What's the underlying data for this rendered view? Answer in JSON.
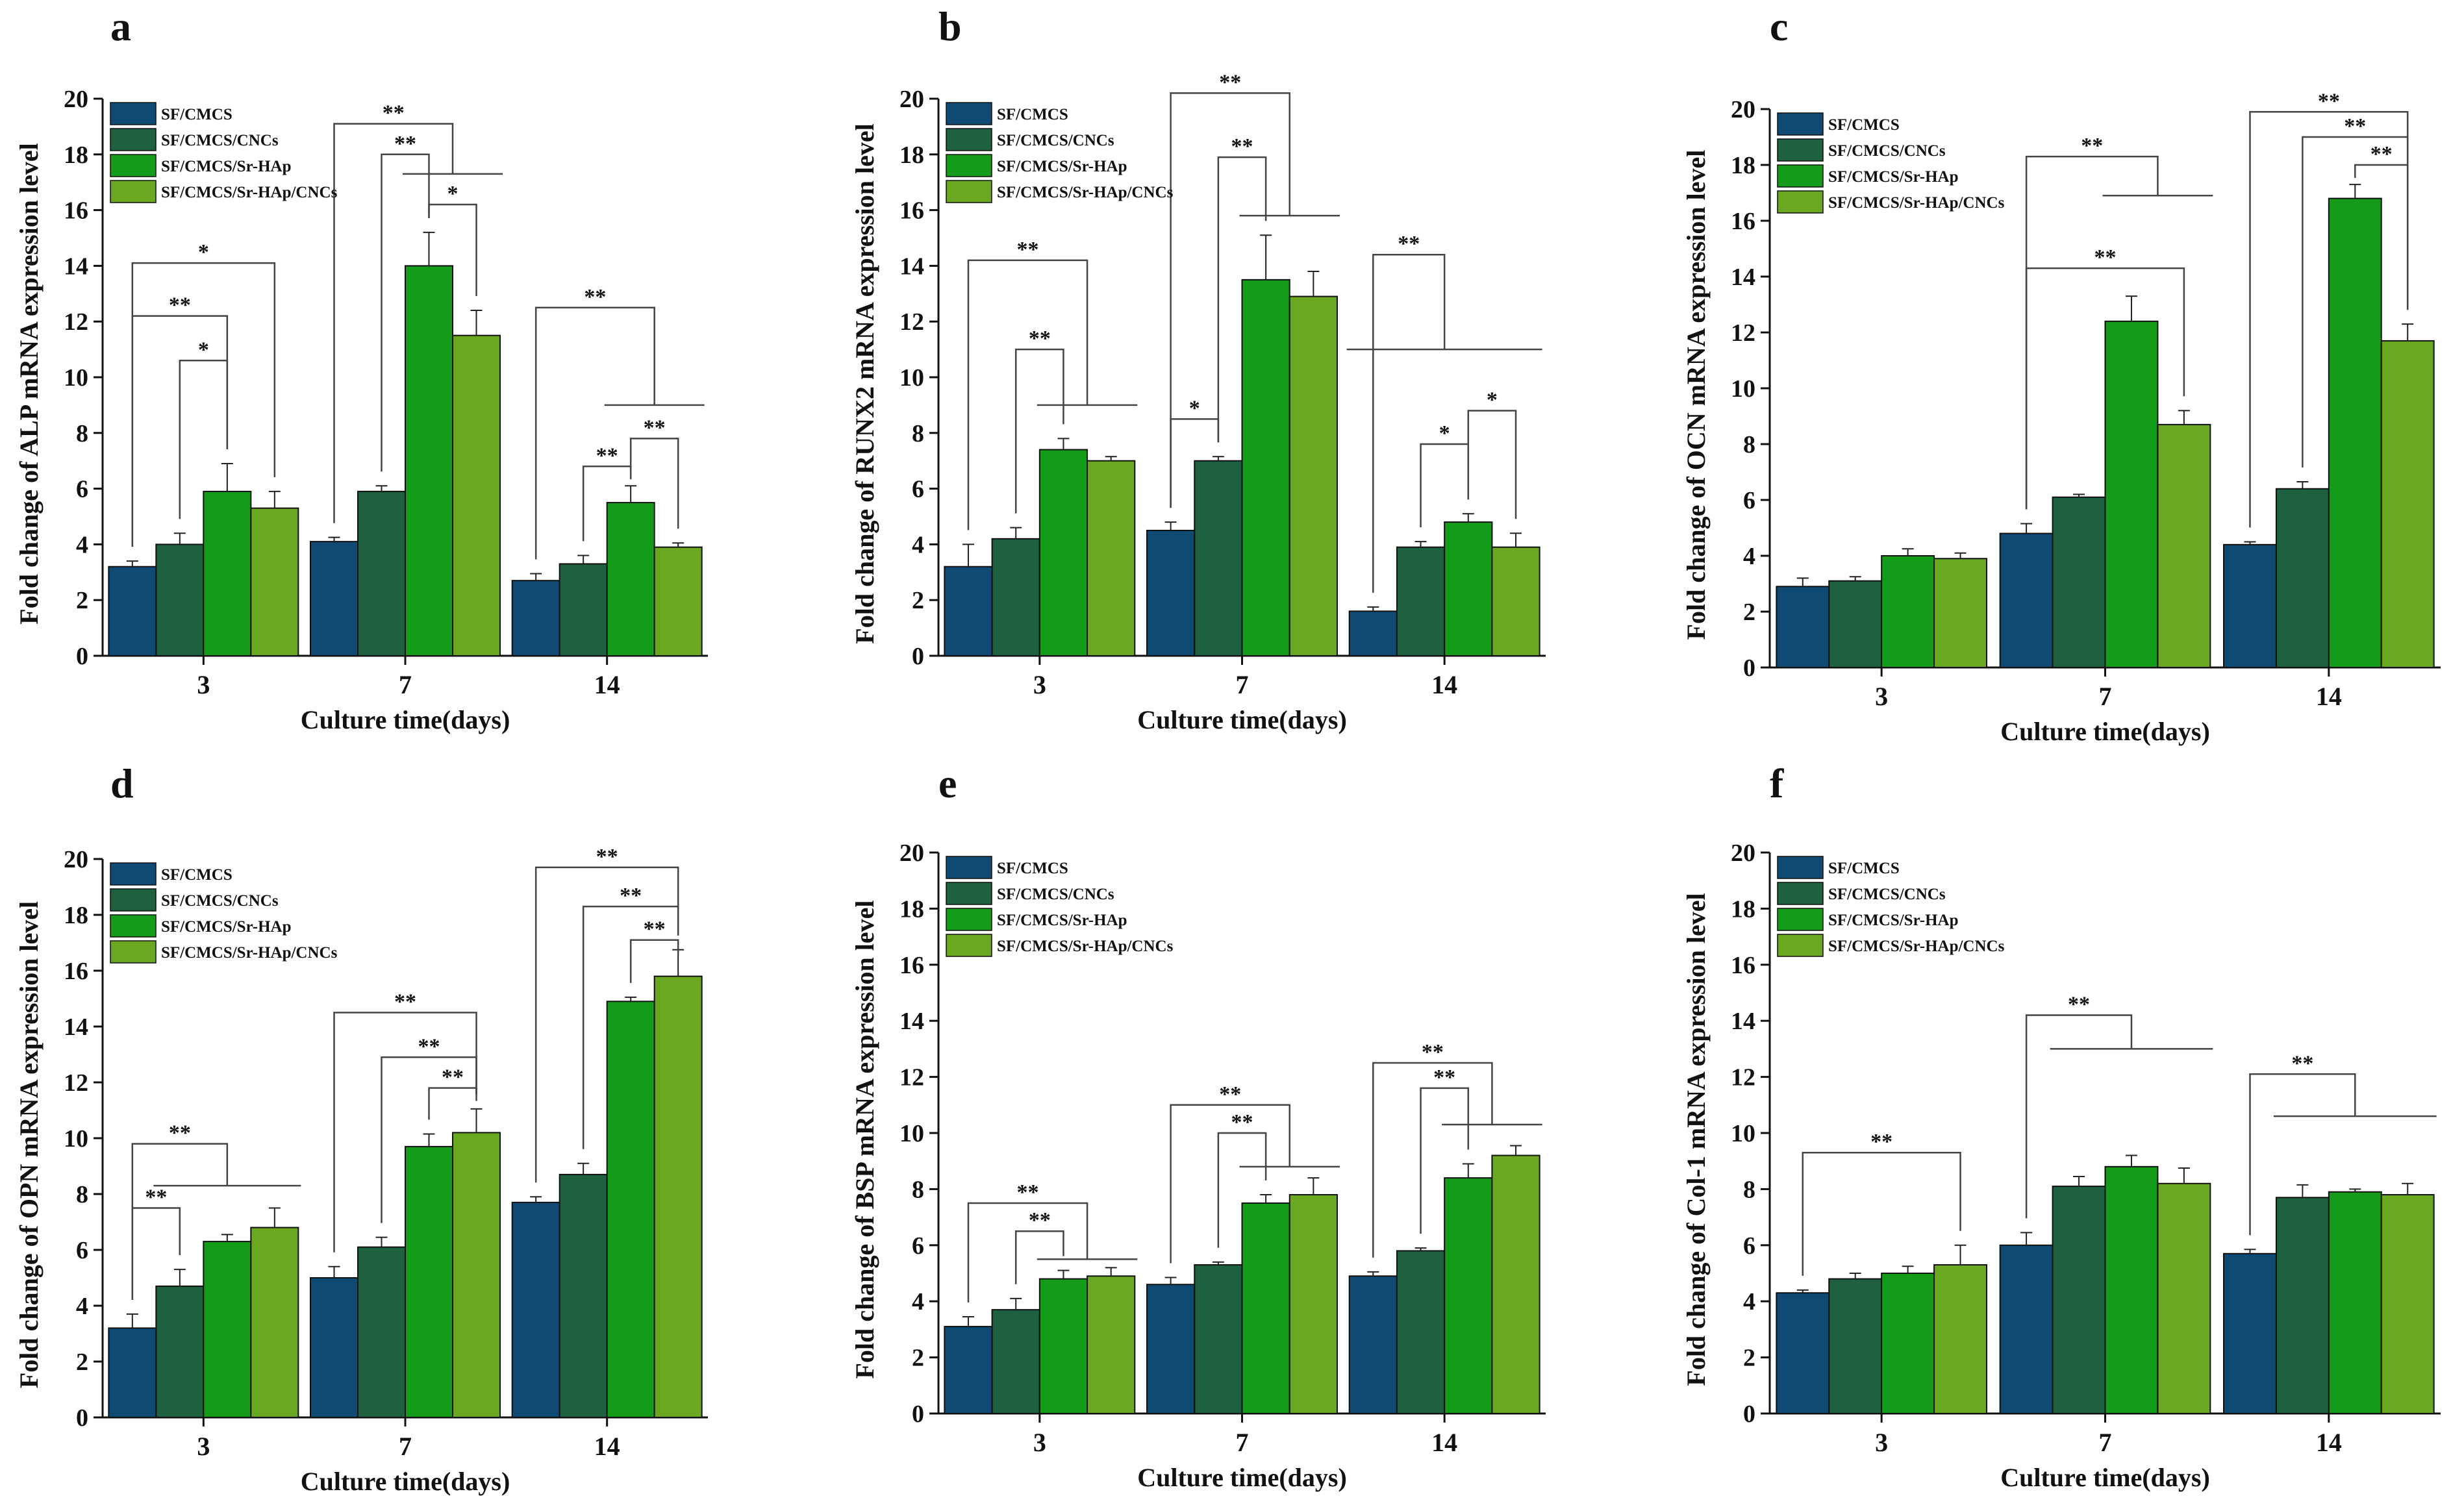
{
  "figure": {
    "colors": {
      "SF/CMCS": "#0e4a74",
      "SF/CMCS/CNCs": "#1d6141",
      "SF/CMCS/Sr-HAp": "#139b19",
      "SF/CMCS/Sr-HAp/CNCs": "#6aa822"
    }
  },
  "chart_data": [
    {
      "type": "bar",
      "panel": "a",
      "xlabel": "Culture time(days)",
      "ylabel": "Fold change of ALP mRNA expression level",
      "categories": [
        "3",
        "7",
        "14"
      ],
      "ylim": [
        0,
        20
      ],
      "yticks": [
        0,
        2,
        4,
        6,
        8,
        10,
        12,
        14,
        16,
        18,
        20
      ],
      "legend": [
        "SF/CMCS",
        "SF/CMCS/CNCs",
        "SF/CMCS/Sr-HAp",
        "SF/CMCS/Sr-HAp/CNCs"
      ],
      "series": [
        {
          "name": "SF/CMCS",
          "values": [
            3.2,
            4.1,
            2.7
          ],
          "errors": [
            0.2,
            0.15,
            0.25
          ]
        },
        {
          "name": "SF/CMCS/CNCs",
          "values": [
            4.0,
            5.9,
            3.3
          ],
          "errors": [
            0.4,
            0.2,
            0.3
          ]
        },
        {
          "name": "SF/CMCS/Sr-HAp",
          "values": [
            5.9,
            14.0,
            5.5
          ],
          "errors": [
            1.0,
            1.2,
            0.6
          ]
        },
        {
          "name": "SF/CMCS/Sr-HAp/CNCs",
          "values": [
            5.3,
            11.5,
            3.9
          ],
          "errors": [
            0.6,
            0.9,
            0.15
          ]
        }
      ],
      "annotations": [
        {
          "label": "*",
          "g": 0,
          "from": 0,
          "to": 3,
          "y": 14.1
        },
        {
          "label": "**",
          "g": 0,
          "from": 0,
          "to": 2,
          "y": 12.2
        },
        {
          "label": "*",
          "g": 0,
          "from": 1,
          "to": 2,
          "y": 10.6
        },
        {
          "label": "**",
          "g": 1,
          "from": 0,
          "to": 3,
          "y": 19.1,
          "groupTo": [
            2,
            3
          ],
          "groupY": 17.3
        },
        {
          "label": "**",
          "g": 1,
          "from": 1,
          "to": 2,
          "y": 18.0
        },
        {
          "label": "*",
          "g": 1,
          "from": 2,
          "to": 3,
          "y": 16.2
        },
        {
          "label": "**",
          "g": 2,
          "from": 0,
          "to": 3,
          "y": 12.5,
          "groupTo": [
            2,
            3
          ],
          "groupY": 9.0
        },
        {
          "label": "**",
          "g": 2,
          "from": 1,
          "to": 2,
          "y": 6.8
        },
        {
          "label": "**",
          "g": 2,
          "from": 2,
          "to": 3,
          "y": 7.8
        }
      ]
    },
    {
      "type": "bar",
      "panel": "b",
      "xlabel": "Culture time(days)",
      "ylabel": "Fold change of RUNX2 mRNA expression level",
      "categories": [
        "3",
        "7",
        "14"
      ],
      "ylim": [
        0,
        20
      ],
      "yticks": [
        0,
        2,
        4,
        6,
        8,
        10,
        12,
        14,
        16,
        18,
        20
      ],
      "legend": [
        "SF/CMCS",
        "SF/CMCS/CNCs",
        "SF/CMCS/Sr-HAp",
        "SF/CMCS/Sr-HAp/CNCs"
      ],
      "series": [
        {
          "name": "SF/CMCS",
          "values": [
            3.2,
            4.5,
            1.6
          ],
          "errors": [
            0.8,
            0.3,
            0.15
          ]
        },
        {
          "name": "SF/CMCS/CNCs",
          "values": [
            4.2,
            7.0,
            3.9
          ],
          "errors": [
            0.4,
            0.15,
            0.2
          ]
        },
        {
          "name": "SF/CMCS/Sr-HAp",
          "values": [
            7.4,
            13.5,
            4.8
          ],
          "errors": [
            0.4,
            1.6,
            0.3
          ]
        },
        {
          "name": "SF/CMCS/Sr-HAp/CNCs",
          "values": [
            7.0,
            12.9,
            3.9
          ],
          "errors": [
            0.15,
            0.9,
            0.5
          ]
        }
      ],
      "annotations": [
        {
          "label": "**",
          "g": 0,
          "from": 0,
          "to": 3,
          "y": 14.2,
          "groupTo": [
            2,
            3
          ],
          "groupY": 9.0
        },
        {
          "label": "**",
          "g": 0,
          "from": 1,
          "to": 2,
          "y": 11.0
        },
        {
          "label": "**",
          "g": 1,
          "from": 0,
          "to": 3,
          "y": 20.2,
          "groupTo": [
            2,
            3
          ],
          "groupY": 15.8
        },
        {
          "label": "**",
          "g": 1,
          "from": 1,
          "to": 2,
          "y": 17.9
        },
        {
          "label": "*",
          "g": 1,
          "from": 0,
          "to": 1,
          "y": 8.5
        },
        {
          "label": "**",
          "g": 2,
          "from": 0,
          "to": 3,
          "y": 14.4,
          "groupTo": [
            0,
            3
          ],
          "groupY": 11.0
        },
        {
          "label": "*",
          "g": 2,
          "from": 1,
          "to": 2,
          "y": 7.6
        },
        {
          "label": "*",
          "g": 2,
          "from": 2,
          "to": 3,
          "y": 8.8
        }
      ]
    },
    {
      "type": "bar",
      "panel": "c",
      "xlabel": "Culture time(days)",
      "ylabel": "Fold change of OCN mRNA expression level",
      "categories": [
        "3",
        "7",
        "14"
      ],
      "ylim": [
        0,
        20
      ],
      "yticks": [
        0,
        2,
        4,
        6,
        8,
        10,
        12,
        14,
        16,
        18,
        20
      ],
      "legend": [
        "SF/CMCS",
        "SF/CMCS/CNCs",
        "SF/CMCS/Sr-HAp",
        "SF/CMCS/Sr-HAp/CNCs"
      ],
      "series": [
        {
          "name": "SF/CMCS",
          "values": [
            2.9,
            4.8,
            4.4
          ],
          "errors": [
            0.3,
            0.35,
            0.1
          ]
        },
        {
          "name": "SF/CMCS/CNCs",
          "values": [
            3.1,
            6.1,
            6.4
          ],
          "errors": [
            0.15,
            0.1,
            0.25
          ]
        },
        {
          "name": "SF/CMCS/Sr-HAp",
          "values": [
            4.0,
            12.4,
            16.8
          ],
          "errors": [
            0.25,
            0.9,
            0.5
          ]
        },
        {
          "name": "SF/CMCS/Sr-HAp/CNCs",
          "values": [
            3.9,
            8.7,
            11.7
          ],
          "errors": [
            0.2,
            0.5,
            0.6
          ]
        }
      ],
      "annotations": [
        {
          "label": "**",
          "g": 1,
          "from": 0,
          "to": 3,
          "y": 18.3,
          "groupTo": [
            2,
            3
          ],
          "groupY": 16.9
        },
        {
          "label": "**",
          "g": 1,
          "from": 0,
          "to": 3,
          "y": 14.3
        },
        {
          "label": "**",
          "g": 2,
          "from": 0,
          "to": 3,
          "y": 19.9
        },
        {
          "label": "**",
          "g": 2,
          "from": 1,
          "to": 3,
          "y": 19.0
        },
        {
          "label": "**",
          "g": 2,
          "from": 2,
          "to": 3,
          "y": 18.0
        }
      ]
    },
    {
      "type": "bar",
      "panel": "d",
      "xlabel": "Culture time(days)",
      "ylabel": "Fold change of OPN mRNA expression level",
      "categories": [
        "3",
        "7",
        "14"
      ],
      "ylim": [
        0,
        20
      ],
      "yticks": [
        0,
        2,
        4,
        6,
        8,
        10,
        12,
        14,
        16,
        18,
        20
      ],
      "legend": [
        "SF/CMCS",
        "SF/CMCS/CNCs",
        "SF/CMCS/Sr-HAp",
        "SF/CMCS/Sr-HAp/CNCs"
      ],
      "series": [
        {
          "name": "SF/CMCS",
          "values": [
            3.2,
            5.0,
            7.7
          ],
          "errors": [
            0.5,
            0.4,
            0.2
          ]
        },
        {
          "name": "SF/CMCS/CNCs",
          "values": [
            4.7,
            6.1,
            8.7
          ],
          "errors": [
            0.6,
            0.35,
            0.4
          ]
        },
        {
          "name": "SF/CMCS/Sr-HAp",
          "values": [
            6.3,
            9.7,
            14.9
          ],
          "errors": [
            0.25,
            0.45,
            0.15
          ]
        },
        {
          "name": "SF/CMCS/Sr-HAp/CNCs",
          "values": [
            6.8,
            10.2,
            15.8
          ],
          "errors": [
            0.7,
            0.85,
            0.95
          ]
        }
      ],
      "annotations": [
        {
          "label": "**",
          "g": 0,
          "from": 0,
          "to": 2,
          "y": 9.8,
          "groupTo": [
            1,
            3
          ],
          "groupY": 8.3
        },
        {
          "label": "**",
          "g": 0,
          "from": 0,
          "to": 1,
          "y": 7.5
        },
        {
          "label": "**",
          "g": 1,
          "from": 0,
          "to": 3,
          "y": 14.5
        },
        {
          "label": "**",
          "g": 1,
          "from": 1,
          "to": 3,
          "y": 12.9
        },
        {
          "label": "**",
          "g": 1,
          "from": 2,
          "to": 3,
          "y": 11.8
        },
        {
          "label": "**",
          "g": 2,
          "from": 0,
          "to": 3,
          "y": 19.7
        },
        {
          "label": "**",
          "g": 2,
          "from": 1,
          "to": 3,
          "y": 18.3
        },
        {
          "label": "**",
          "g": 2,
          "from": 2,
          "to": 3,
          "y": 17.1
        }
      ]
    },
    {
      "type": "bar",
      "panel": "e",
      "xlabel": "Culture time(days)",
      "ylabel": "Fold change of BSP mRNA expression level",
      "categories": [
        "3",
        "7",
        "14"
      ],
      "ylim": [
        0,
        20
      ],
      "yticks": [
        0,
        2,
        4,
        6,
        8,
        10,
        12,
        14,
        16,
        18,
        20
      ],
      "legend": [
        "SF/CMCS",
        "SF/CMCS/CNCs",
        "SF/CMCS/Sr-HAp",
        "SF/CMCS/Sr-HAp/CNCs"
      ],
      "series": [
        {
          "name": "SF/CMCS",
          "values": [
            3.1,
            4.6,
            4.9
          ],
          "errors": [
            0.35,
            0.25,
            0.15
          ]
        },
        {
          "name": "SF/CMCS/CNCs",
          "values": [
            3.7,
            5.3,
            5.8
          ],
          "errors": [
            0.4,
            0.1,
            0.1
          ]
        },
        {
          "name": "SF/CMCS/Sr-HAp",
          "values": [
            4.8,
            7.5,
            8.4
          ],
          "errors": [
            0.3,
            0.3,
            0.5
          ]
        },
        {
          "name": "SF/CMCS/Sr-HAp/CNCs",
          "values": [
            4.9,
            7.8,
            9.2
          ],
          "errors": [
            0.3,
            0.6,
            0.35
          ]
        }
      ],
      "annotations": [
        {
          "label": "**",
          "g": 0,
          "from": 0,
          "to": 2,
          "y": 7.5,
          "groupTo": [
            2,
            3
          ],
          "groupY": 5.5
        },
        {
          "label": "**",
          "g": 0,
          "from": 1,
          "to": 2,
          "y": 6.5
        },
        {
          "label": "**",
          "g": 1,
          "from": 0,
          "to": 2,
          "y": 11.0,
          "groupTo": [
            2,
            3
          ],
          "groupY": 8.8
        },
        {
          "label": "**",
          "g": 1,
          "from": 1,
          "to": 2,
          "y": 10.0
        },
        {
          "label": "**",
          "g": 2,
          "from": 0,
          "to": 2,
          "y": 12.5,
          "groupTo": [
            2,
            3
          ],
          "groupY": 10.3
        },
        {
          "label": "**",
          "g": 2,
          "from": 1,
          "to": 2,
          "y": 11.6
        }
      ]
    },
    {
      "type": "bar",
      "panel": "f",
      "xlabel": "Culture time(days)",
      "ylabel": "Fold change of Col-1 mRNA expression level",
      "categories": [
        "3",
        "7",
        "14"
      ],
      "ylim": [
        0,
        20
      ],
      "yticks": [
        0,
        2,
        4,
        6,
        8,
        10,
        12,
        14,
        16,
        18,
        20
      ],
      "legend": [
        "SF/CMCS",
        "SF/CMCS/CNCs",
        "SF/CMCS/Sr-HAp",
        "SF/CMCS/Sr-HAp/CNCs"
      ],
      "series": [
        {
          "name": "SF/CMCS",
          "values": [
            4.3,
            6.0,
            5.7
          ],
          "errors": [
            0.1,
            0.45,
            0.15
          ]
        },
        {
          "name": "SF/CMCS/CNCs",
          "values": [
            4.8,
            8.1,
            7.7
          ],
          "errors": [
            0.2,
            0.35,
            0.45
          ]
        },
        {
          "name": "SF/CMCS/Sr-HAp",
          "values": [
            5.0,
            8.8,
            7.9
          ],
          "errors": [
            0.25,
            0.4,
            0.1
          ]
        },
        {
          "name": "SF/CMCS/Sr-HAp/CNCs",
          "values": [
            5.3,
            8.2,
            7.8
          ],
          "errors": [
            0.7,
            0.55,
            0.4
          ]
        }
      ],
      "annotations": [
        {
          "label": "**",
          "g": 0,
          "from": 0,
          "to": 3,
          "y": 9.3
        },
        {
          "label": "**",
          "g": 1,
          "from": 0,
          "to": 3,
          "y": 14.2,
          "groupTo": [
            1,
            3
          ],
          "groupY": 13.0
        },
        {
          "label": "**",
          "g": 2,
          "from": 0,
          "to": 3,
          "y": 12.1,
          "groupTo": [
            1,
            3
          ],
          "groupY": 10.6
        }
      ]
    }
  ]
}
